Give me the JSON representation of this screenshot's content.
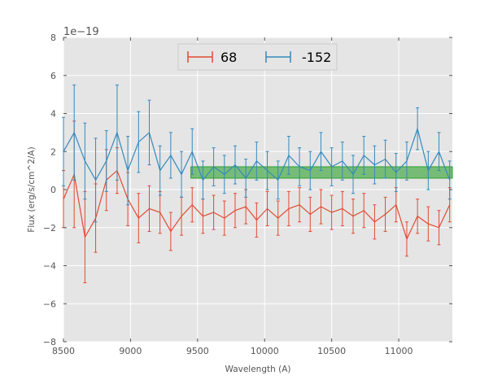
{
  "chart_data": {
    "type": "line",
    "title": "",
    "xlabel": "Wavelength (A)",
    "ylabel": "Flux (erg/s/cm^2/A)",
    "offset_label": "1e−19",
    "xlim": [
      8500,
      11400
    ],
    "ylim": [
      -8,
      8
    ],
    "xticks": [
      8500,
      9000,
      9500,
      10000,
      10500,
      11000
    ],
    "xtick_labels": [
      "8500",
      "9000",
      "9500",
      "10000",
      "10500",
      "11000"
    ],
    "yticks": [
      -8,
      -6,
      -4,
      -2,
      0,
      2,
      4,
      6,
      8
    ],
    "ytick_labels": [
      "−8",
      "−6",
      "−4",
      "−2",
      "0",
      "2",
      "4",
      "6",
      "8"
    ],
    "grid": true,
    "legend_position": "top-center",
    "band": {
      "x_start": 9450,
      "x_end": 11400,
      "y_low": 0.6,
      "y_high": 1.2,
      "color": "#2ca02c"
    },
    "series": [
      {
        "name": "68",
        "color": "#e24a33",
        "x": [
          8500,
          8580,
          8660,
          8740,
          8820,
          8900,
          8980,
          9060,
          9140,
          9220,
          9300,
          9380,
          9460,
          9540,
          9620,
          9700,
          9780,
          9860,
          9940,
          10020,
          10100,
          10180,
          10260,
          10340,
          10420,
          10500,
          10580,
          10660,
          10740,
          10820,
          10900,
          10980,
          11060,
          11140,
          11220,
          11300,
          11380
        ],
        "y": [
          -0.5,
          0.8,
          -2.5,
          -1.5,
          0.5,
          1.0,
          -0.5,
          -1.5,
          -1.0,
          -1.2,
          -2.2,
          -1.4,
          -0.8,
          -1.4,
          -1.2,
          -1.5,
          -1.1,
          -0.9,
          -1.6,
          -1.0,
          -1.5,
          -1.0,
          -0.8,
          -1.3,
          -0.9,
          -1.2,
          -1.0,
          -1.4,
          -1.1,
          -1.7,
          -1.3,
          -0.8,
          -2.6,
          -1.4,
          -1.8,
          -2.0,
          -0.8
        ],
        "err": [
          1.5,
          2.8,
          2.4,
          1.8,
          1.6,
          1.2,
          1.4,
          1.3,
          1.2,
          1.1,
          1.0,
          1.0,
          0.9,
          0.9,
          0.9,
          0.9,
          0.9,
          0.9,
          0.9,
          0.9,
          0.9,
          0.9,
          0.9,
          0.9,
          0.9,
          0.9,
          0.9,
          0.9,
          0.9,
          0.9,
          0.9,
          0.9,
          0.9,
          0.9,
          0.9,
          0.9,
          0.9
        ]
      },
      {
        "name": "-152",
        "color": "#348abd",
        "x": [
          8500,
          8580,
          8660,
          8740,
          8820,
          8900,
          8980,
          9060,
          9140,
          9220,
          9300,
          9380,
          9460,
          9540,
          9620,
          9700,
          9780,
          9860,
          9940,
          10020,
          10100,
          10180,
          10260,
          10340,
          10420,
          10500,
          10580,
          10660,
          10740,
          10820,
          10900,
          10980,
          11060,
          11140,
          11220,
          11300,
          11380
        ],
        "y": [
          2.0,
          3.0,
          1.5,
          0.5,
          1.5,
          3.0,
          1.0,
          2.5,
          3.0,
          1.0,
          1.8,
          0.8,
          2.0,
          0.5,
          1.2,
          0.8,
          1.3,
          0.6,
          1.5,
          1.0,
          0.5,
          1.8,
          1.2,
          1.0,
          2.0,
          1.2,
          1.5,
          0.8,
          1.8,
          1.3,
          1.6,
          0.9,
          1.5,
          3.2,
          1.0,
          2.0,
          0.5
        ],
        "err": [
          1.8,
          2.5,
          2.0,
          2.2,
          1.6,
          2.5,
          1.8,
          1.6,
          1.7,
          1.3,
          1.2,
          1.2,
          1.2,
          1.0,
          1.0,
          1.0,
          1.0,
          1.0,
          1.0,
          1.0,
          1.0,
          1.0,
          1.0,
          1.0,
          1.0,
          1.0,
          1.0,
          1.0,
          1.0,
          1.0,
          1.0,
          1.0,
          1.0,
          1.1,
          1.0,
          1.0,
          1.0
        ]
      }
    ]
  }
}
